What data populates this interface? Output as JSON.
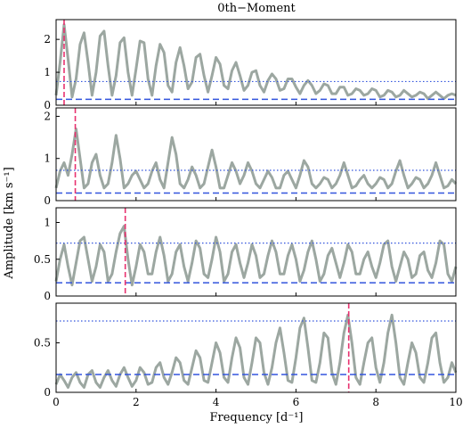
{
  "figure": {
    "title": "0th−Moment",
    "xlabel": "Frequency [d⁻¹]",
    "ylabel": "Amplitude [km s⁻¹]"
  },
  "chart_data": {
    "type": "line",
    "title": "0th−Moment",
    "xlabel": "Frequency [d⁻¹]",
    "ylabel": "Amplitude [km s⁻¹]",
    "xlim": [
      0,
      10
    ],
    "x_ticks": [
      0,
      2,
      4,
      6,
      8,
      10
    ],
    "colors": {
      "spectrum": "#9ca7a1",
      "peak_marker": "#e8316f",
      "threshold": "#3355dd"
    },
    "panels": [
      {
        "ylim": [
          0,
          2.6
        ],
        "y_ticks": [
          0,
          1,
          2
        ],
        "peak_frequency": 0.2,
        "dotted_level": 0.72,
        "dashed_level": 0.18,
        "series": [
          {
            "x": [
              0.0,
              0.1,
              0.2,
              0.3,
              0.4,
              0.5,
              0.6,
              0.7,
              0.8,
              0.9,
              1.0,
              1.1,
              1.2,
              1.3,
              1.4,
              1.5,
              1.6,
              1.7,
              1.8,
              1.9,
              2.0,
              2.1,
              2.2,
              2.3,
              2.4,
              2.5,
              2.6,
              2.7,
              2.8,
              2.9,
              3.0,
              3.1,
              3.2,
              3.3,
              3.4,
              3.5,
              3.6,
              3.7,
              3.8,
              3.9,
              4.0,
              4.1,
              4.2,
              4.3,
              4.4,
              4.5,
              4.6,
              4.7,
              4.8,
              4.9,
              5.0,
              5.1,
              5.2,
              5.3,
              5.4,
              5.5,
              5.6,
              5.7,
              5.8,
              5.9,
              6.0,
              6.1,
              6.2,
              6.3,
              6.4,
              6.5,
              6.6,
              6.7,
              6.8,
              6.9,
              7.0,
              7.1,
              7.2,
              7.3,
              7.4,
              7.5,
              7.6,
              7.7,
              7.8,
              7.9,
              8.0,
              8.1,
              8.2,
              8.3,
              8.4,
              8.5,
              8.6,
              8.7,
              8.8,
              8.9,
              9.0,
              9.1,
              9.2,
              9.3,
              9.4,
              9.5,
              9.6,
              9.7,
              9.8,
              9.9,
              10.0
            ],
            "y": [
              0.3,
              1.3,
              2.45,
              1.4,
              0.25,
              0.8,
              1.85,
              2.2,
              1.3,
              0.3,
              1.0,
              2.1,
              2.25,
              1.2,
              0.3,
              0.9,
              1.9,
              2.05,
              1.0,
              0.3,
              1.1,
              1.95,
              1.9,
              0.8,
              0.3,
              1.2,
              1.85,
              1.6,
              0.6,
              0.4,
              1.3,
              1.75,
              1.2,
              0.5,
              0.7,
              1.45,
              1.55,
              0.9,
              0.4,
              0.9,
              1.45,
              1.25,
              0.6,
              0.5,
              1.05,
              1.3,
              0.9,
              0.45,
              0.6,
              1.0,
              1.05,
              0.6,
              0.4,
              0.75,
              0.95,
              0.8,
              0.45,
              0.5,
              0.8,
              0.8,
              0.55,
              0.35,
              0.6,
              0.75,
              0.6,
              0.35,
              0.45,
              0.65,
              0.6,
              0.35,
              0.35,
              0.55,
              0.55,
              0.3,
              0.35,
              0.5,
              0.45,
              0.3,
              0.35,
              0.5,
              0.45,
              0.25,
              0.3,
              0.45,
              0.4,
              0.25,
              0.3,
              0.45,
              0.35,
              0.25,
              0.3,
              0.4,
              0.35,
              0.2,
              0.3,
              0.4,
              0.3,
              0.2,
              0.3,
              0.35,
              0.3
            ]
          }
        ]
      },
      {
        "ylim": [
          0,
          2.2
        ],
        "y_ticks": [
          0,
          1,
          2
        ],
        "peak_frequency": 0.48,
        "dotted_level": 0.72,
        "dashed_level": 0.18,
        "series": [
          {
            "x": [
              0.0,
              0.1,
              0.2,
              0.3,
              0.4,
              0.5,
              0.6,
              0.7,
              0.8,
              0.9,
              1.0,
              1.1,
              1.2,
              1.3,
              1.4,
              1.5,
              1.6,
              1.7,
              1.8,
              1.9,
              2.0,
              2.1,
              2.2,
              2.3,
              2.4,
              2.5,
              2.6,
              2.7,
              2.8,
              2.9,
              3.0,
              3.1,
              3.2,
              3.3,
              3.4,
              3.5,
              3.6,
              3.7,
              3.8,
              3.9,
              4.0,
              4.1,
              4.2,
              4.3,
              4.4,
              4.5,
              4.6,
              4.7,
              4.8,
              4.9,
              5.0,
              5.1,
              5.2,
              5.3,
              5.4,
              5.5,
              5.6,
              5.7,
              5.8,
              5.9,
              6.0,
              6.1,
              6.2,
              6.3,
              6.4,
              6.5,
              6.6,
              6.7,
              6.8,
              6.9,
              7.0,
              7.1,
              7.2,
              7.3,
              7.4,
              7.5,
              7.6,
              7.7,
              7.8,
              7.9,
              8.0,
              8.1,
              8.2,
              8.3,
              8.4,
              8.5,
              8.6,
              8.7,
              8.8,
              8.9,
              9.0,
              9.1,
              9.2,
              9.3,
              9.4,
              9.5,
              9.6,
              9.7,
              9.8,
              9.9,
              10.0
            ],
            "y": [
              0.3,
              0.7,
              0.9,
              0.6,
              1.1,
              1.7,
              1.0,
              0.3,
              0.4,
              0.9,
              1.1,
              0.6,
              0.3,
              0.4,
              0.9,
              1.55,
              1.0,
              0.3,
              0.4,
              0.6,
              0.7,
              0.5,
              0.3,
              0.4,
              0.7,
              0.9,
              0.5,
              0.3,
              0.9,
              1.5,
              1.1,
              0.4,
              0.3,
              0.5,
              0.8,
              0.6,
              0.3,
              0.4,
              0.8,
              1.2,
              0.8,
              0.3,
              0.3,
              0.6,
              0.9,
              0.7,
              0.4,
              0.6,
              0.9,
              0.7,
              0.4,
              0.3,
              0.5,
              0.7,
              0.55,
              0.3,
              0.3,
              0.6,
              0.7,
              0.5,
              0.3,
              0.6,
              0.95,
              0.8,
              0.4,
              0.3,
              0.4,
              0.55,
              0.5,
              0.3,
              0.4,
              0.6,
              0.9,
              0.6,
              0.3,
              0.35,
              0.5,
              0.6,
              0.4,
              0.3,
              0.4,
              0.55,
              0.5,
              0.3,
              0.4,
              0.7,
              0.95,
              0.6,
              0.3,
              0.4,
              0.55,
              0.5,
              0.3,
              0.4,
              0.6,
              0.9,
              0.6,
              0.3,
              0.35,
              0.5,
              0.4
            ]
          }
        ]
      },
      {
        "ylim": [
          0,
          1.2
        ],
        "y_ticks": [
          0.0,
          0.5,
          1.0
        ],
        "peak_frequency": 1.73,
        "dotted_level": 0.72,
        "dashed_level": 0.18,
        "series": [
          {
            "x": [
              0.0,
              0.1,
              0.2,
              0.3,
              0.4,
              0.5,
              0.6,
              0.7,
              0.8,
              0.9,
              1.0,
              1.1,
              1.2,
              1.3,
              1.4,
              1.5,
              1.6,
              1.7,
              1.8,
              1.9,
              2.0,
              2.1,
              2.2,
              2.3,
              2.4,
              2.5,
              2.6,
              2.7,
              2.8,
              2.9,
              3.0,
              3.1,
              3.2,
              3.3,
              3.4,
              3.5,
              3.6,
              3.7,
              3.8,
              3.9,
              4.0,
              4.1,
              4.2,
              4.3,
              4.4,
              4.5,
              4.6,
              4.7,
              4.8,
              4.9,
              5.0,
              5.1,
              5.2,
              5.3,
              5.4,
              5.5,
              5.6,
              5.7,
              5.8,
              5.9,
              6.0,
              6.1,
              6.2,
              6.3,
              6.4,
              6.5,
              6.6,
              6.7,
              6.8,
              6.9,
              7.0,
              7.1,
              7.2,
              7.3,
              7.4,
              7.5,
              7.6,
              7.7,
              7.8,
              7.9,
              8.0,
              8.1,
              8.2,
              8.3,
              8.4,
              8.5,
              8.6,
              8.7,
              8.8,
              8.9,
              9.0,
              9.1,
              9.2,
              9.3,
              9.4,
              9.5,
              9.6,
              9.7,
              9.8,
              9.9,
              10.0
            ],
            "y": [
              0.2,
              0.5,
              0.7,
              0.4,
              0.15,
              0.45,
              0.75,
              0.8,
              0.5,
              0.2,
              0.4,
              0.7,
              0.6,
              0.2,
              0.3,
              0.6,
              0.85,
              0.95,
              0.5,
              0.15,
              0.4,
              0.7,
              0.6,
              0.3,
              0.3,
              0.6,
              0.8,
              0.55,
              0.2,
              0.3,
              0.6,
              0.7,
              0.4,
              0.2,
              0.45,
              0.75,
              0.65,
              0.3,
              0.25,
              0.5,
              0.8,
              0.6,
              0.2,
              0.3,
              0.6,
              0.7,
              0.45,
              0.25,
              0.45,
              0.7,
              0.55,
              0.25,
              0.3,
              0.55,
              0.75,
              0.6,
              0.3,
              0.3,
              0.55,
              0.7,
              0.5,
              0.2,
              0.35,
              0.6,
              0.75,
              0.5,
              0.2,
              0.3,
              0.55,
              0.65,
              0.45,
              0.25,
              0.45,
              0.7,
              0.6,
              0.3,
              0.3,
              0.5,
              0.6,
              0.4,
              0.25,
              0.45,
              0.7,
              0.75,
              0.4,
              0.2,
              0.4,
              0.6,
              0.5,
              0.25,
              0.3,
              0.55,
              0.6,
              0.35,
              0.25,
              0.45,
              0.75,
              0.7,
              0.3,
              0.2,
              0.4
            ]
          }
        ]
      },
      {
        "ylim": [
          0,
          0.9
        ],
        "y_ticks": [
          0.0,
          0.5
        ],
        "peak_frequency": 7.32,
        "dotted_level": 0.72,
        "dashed_level": 0.18,
        "series": [
          {
            "x": [
              0.0,
              0.1,
              0.2,
              0.3,
              0.4,
              0.5,
              0.6,
              0.7,
              0.8,
              0.9,
              1.0,
              1.1,
              1.2,
              1.3,
              1.4,
              1.5,
              1.6,
              1.7,
              1.8,
              1.9,
              2.0,
              2.1,
              2.2,
              2.3,
              2.4,
              2.5,
              2.6,
              2.7,
              2.8,
              2.9,
              3.0,
              3.1,
              3.2,
              3.3,
              3.4,
              3.5,
              3.6,
              3.7,
              3.8,
              3.9,
              4.0,
              4.1,
              4.2,
              4.3,
              4.4,
              4.5,
              4.6,
              4.7,
              4.8,
              4.9,
              5.0,
              5.1,
              5.2,
              5.3,
              5.4,
              5.5,
              5.6,
              5.7,
              5.8,
              5.9,
              6.0,
              6.1,
              6.2,
              6.3,
              6.4,
              6.5,
              6.6,
              6.7,
              6.8,
              6.9,
              7.0,
              7.1,
              7.2,
              7.3,
              7.4,
              7.5,
              7.6,
              7.7,
              7.8,
              7.9,
              8.0,
              8.1,
              8.2,
              8.3,
              8.4,
              8.5,
              8.6,
              8.7,
              8.8,
              8.9,
              9.0,
              9.1,
              9.2,
              9.3,
              9.4,
              9.5,
              9.6,
              9.7,
              9.8,
              9.9,
              10.0
            ],
            "y": [
              0.08,
              0.18,
              0.12,
              0.05,
              0.15,
              0.2,
              0.1,
              0.05,
              0.18,
              0.22,
              0.1,
              0.05,
              0.15,
              0.22,
              0.12,
              0.06,
              0.18,
              0.25,
              0.15,
              0.06,
              0.12,
              0.25,
              0.2,
              0.08,
              0.1,
              0.25,
              0.3,
              0.15,
              0.08,
              0.2,
              0.35,
              0.3,
              0.12,
              0.08,
              0.25,
              0.42,
              0.35,
              0.12,
              0.1,
              0.3,
              0.5,
              0.4,
              0.15,
              0.1,
              0.35,
              0.55,
              0.45,
              0.15,
              0.08,
              0.3,
              0.55,
              0.5,
              0.2,
              0.08,
              0.25,
              0.5,
              0.65,
              0.4,
              0.12,
              0.1,
              0.35,
              0.65,
              0.75,
              0.45,
              0.12,
              0.1,
              0.3,
              0.6,
              0.55,
              0.2,
              0.08,
              0.3,
              0.6,
              0.78,
              0.5,
              0.15,
              0.08,
              0.3,
              0.5,
              0.55,
              0.25,
              0.1,
              0.3,
              0.6,
              0.78,
              0.5,
              0.15,
              0.08,
              0.3,
              0.5,
              0.4,
              0.15,
              0.1,
              0.3,
              0.55,
              0.6,
              0.3,
              0.1,
              0.15,
              0.3,
              0.2
            ]
          }
        ]
      }
    ]
  }
}
